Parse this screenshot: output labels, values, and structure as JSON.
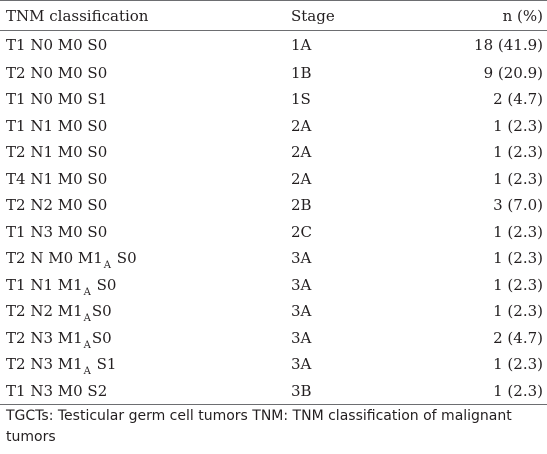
{
  "table": {
    "headers": {
      "classification": "TNM classification",
      "stage": "Stage",
      "n": "n (%)"
    },
    "rows": [
      {
        "tnm": "T1 N0 M0 S0",
        "stage": "1A",
        "n": "18 (41.9)"
      },
      {
        "tnm": "T2 N0 M0 S0",
        "stage": "1B",
        "n": "9 (20.9)"
      },
      {
        "tnm": "T1 N0 M0 S1",
        "stage": "1S",
        "n": "2 (4.7)"
      },
      {
        "tnm": "T1 N1 M0 S0",
        "stage": "2A",
        "n": "1 (2.3)"
      },
      {
        "tnm": "T2 N1 M0 S0",
        "stage": "2A",
        "n": "1 (2.3)"
      },
      {
        "tnm": "T4 N1 M0 S0",
        "stage": "2A",
        "n": "1 (2.3)"
      },
      {
        "tnm": "T2 N2 M0 S0",
        "stage": "2B",
        "n": "3 (7.0)"
      },
      {
        "tnm": "T1 N3 M0 S0",
        "stage": "2C",
        "n": "1 (2.3)"
      },
      {
        "tnm_pre": "T2 N M0 M1",
        "tnm_sub": "A",
        "tnm_post": " S0",
        "stage": "3A",
        "n": "1 (2.3)"
      },
      {
        "tnm_pre": "T1 N1 M1",
        "tnm_sub": "A",
        "tnm_post": " S0",
        "stage": "3A",
        "n": "1 (2.3)"
      },
      {
        "tnm_pre": "T2 N2 M1",
        "tnm_sub": "A",
        "tnm_post": "S0",
        "stage": "3A",
        "n": "1 (2.3)"
      },
      {
        "tnm_pre": "T2 N3 M1",
        "tnm_sub": "A",
        "tnm_post": "S0",
        "stage": "3A",
        "n": "2 (4.7)"
      },
      {
        "tnm_pre": "T2 N3 M1",
        "tnm_sub": "A",
        "tnm_post": " S1",
        "stage": "3A",
        "n": "1 (2.3)"
      },
      {
        "tnm": "T1 N3 M0 S2",
        "stage": "3B",
        "n": "1 (2.3)"
      }
    ]
  },
  "footnote": "TGCTs: Testicular germ cell tumors TNM: TNM classification of malignant tumors"
}
